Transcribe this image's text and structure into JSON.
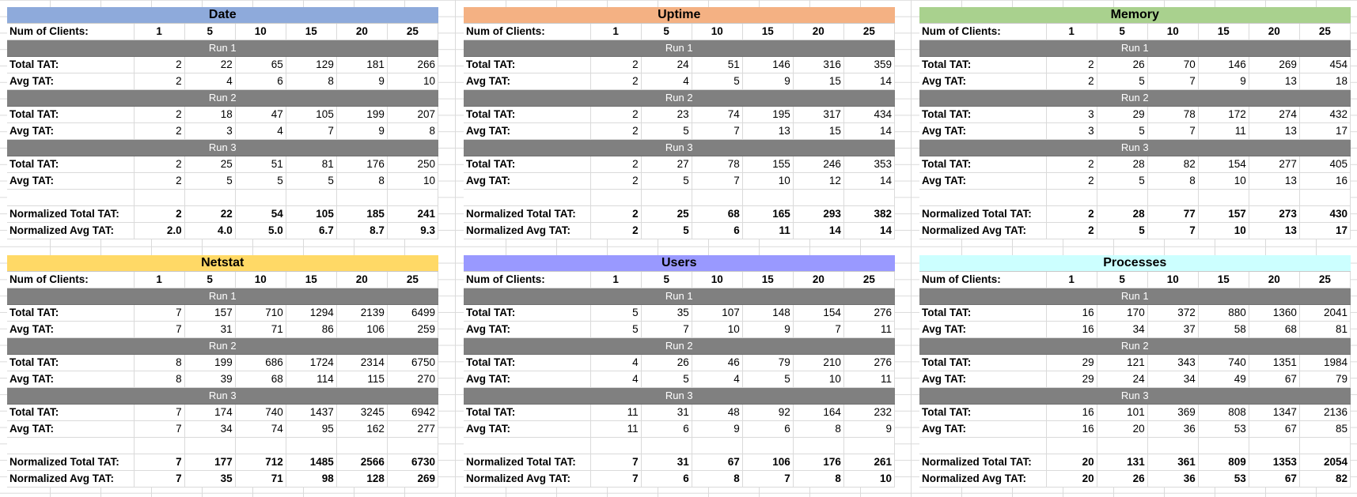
{
  "labels": {
    "num_clients": "Num of Clients:",
    "total_tat": "Total TAT:",
    "avg_tat": "Avg TAT:",
    "norm_total": "Normalized Total TAT:",
    "norm_avg": "Normalized Avg TAT:"
  },
  "clients": [
    "1",
    "5",
    "10",
    "15",
    "20",
    "25"
  ],
  "panels": [
    {
      "title": "Date",
      "color": "#8eaadb",
      "runs": [
        {
          "name": "Run 1",
          "total": [
            "2",
            "22",
            "65",
            "129",
            "181",
            "266"
          ],
          "avg": [
            "2",
            "4",
            "6",
            "8",
            "9",
            "10"
          ]
        },
        {
          "name": "Run 2",
          "total": [
            "2",
            "18",
            "47",
            "105",
            "199",
            "207"
          ],
          "avg": [
            "2",
            "3",
            "4",
            "7",
            "9",
            "8"
          ]
        },
        {
          "name": "Run 3",
          "total": [
            "2",
            "25",
            "51",
            "81",
            "176",
            "250"
          ],
          "avg": [
            "2",
            "5",
            "5",
            "5",
            "8",
            "10"
          ]
        }
      ],
      "norm_total": [
        "2",
        "22",
        "54",
        "105",
        "185",
        "241"
      ],
      "norm_avg": [
        "2.0",
        "4.0",
        "5.0",
        "6.7",
        "8.7",
        "9.3"
      ]
    },
    {
      "title": "Uptime",
      "color": "#f4b183",
      "runs": [
        {
          "name": "Run 1",
          "total": [
            "2",
            "24",
            "51",
            "146",
            "316",
            "359"
          ],
          "avg": [
            "2",
            "4",
            "5",
            "9",
            "15",
            "14"
          ]
        },
        {
          "name": "Run 2",
          "total": [
            "2",
            "23",
            "74",
            "195",
            "317",
            "434"
          ],
          "avg": [
            "2",
            "5",
            "7",
            "13",
            "15",
            "14"
          ]
        },
        {
          "name": "Run 3",
          "total": [
            "2",
            "27",
            "78",
            "155",
            "246",
            "353"
          ],
          "avg": [
            "2",
            "5",
            "7",
            "10",
            "12",
            "14"
          ]
        }
      ],
      "norm_total": [
        "2",
        "25",
        "68",
        "165",
        "293",
        "382"
      ],
      "norm_avg": [
        "2",
        "5",
        "6",
        "11",
        "14",
        "14"
      ]
    },
    {
      "title": "Memory",
      "color": "#a9d18e",
      "runs": [
        {
          "name": "Run 1",
          "total": [
            "2",
            "26",
            "70",
            "146",
            "269",
            "454"
          ],
          "avg": [
            "2",
            "5",
            "7",
            "9",
            "13",
            "18"
          ]
        },
        {
          "name": "Run 2",
          "total": [
            "3",
            "29",
            "78",
            "172",
            "274",
            "432"
          ],
          "avg": [
            "3",
            "5",
            "7",
            "11",
            "13",
            "17"
          ]
        },
        {
          "name": "Run 3",
          "total": [
            "2",
            "28",
            "82",
            "154",
            "277",
            "405"
          ],
          "avg": [
            "2",
            "5",
            "8",
            "10",
            "13",
            "16"
          ]
        }
      ],
      "norm_total": [
        "2",
        "28",
        "77",
        "157",
        "273",
        "430"
      ],
      "norm_avg": [
        "2",
        "5",
        "7",
        "10",
        "13",
        "17"
      ]
    },
    {
      "title": "Netstat",
      "color": "#ffd966",
      "runs": [
        {
          "name": "Run 1",
          "total": [
            "7",
            "157",
            "710",
            "1294",
            "2139",
            "6499"
          ],
          "avg": [
            "7",
            "31",
            "71",
            "86",
            "106",
            "259"
          ]
        },
        {
          "name": "Run 2",
          "total": [
            "8",
            "199",
            "686",
            "1724",
            "2314",
            "6750"
          ],
          "avg": [
            "8",
            "39",
            "68",
            "114",
            "115",
            "270"
          ]
        },
        {
          "name": "Run 3",
          "total": [
            "7",
            "174",
            "740",
            "1437",
            "3245",
            "6942"
          ],
          "avg": [
            "7",
            "34",
            "74",
            "95",
            "162",
            "277"
          ]
        }
      ],
      "norm_total": [
        "7",
        "177",
        "712",
        "1485",
        "2566",
        "6730"
      ],
      "norm_avg": [
        "7",
        "35",
        "71",
        "98",
        "128",
        "269"
      ]
    },
    {
      "title": "Users",
      "color": "#9999ff",
      "runs": [
        {
          "name": "Run 1",
          "total": [
            "5",
            "35",
            "107",
            "148",
            "154",
            "276"
          ],
          "avg": [
            "5",
            "7",
            "10",
            "9",
            "7",
            "11"
          ]
        },
        {
          "name": "Run 2",
          "total": [
            "4",
            "26",
            "46",
            "79",
            "210",
            "276"
          ],
          "avg": [
            "4",
            "5",
            "4",
            "5",
            "10",
            "11"
          ]
        },
        {
          "name": "Run 3",
          "total": [
            "11",
            "31",
            "48",
            "92",
            "164",
            "232"
          ],
          "avg": [
            "11",
            "6",
            "9",
            "6",
            "8",
            "9"
          ]
        }
      ],
      "norm_total": [
        "7",
        "31",
        "67",
        "106",
        "176",
        "261"
      ],
      "norm_avg": [
        "7",
        "6",
        "8",
        "7",
        "8",
        "10"
      ]
    },
    {
      "title": "Processes",
      "color": "#ccffff",
      "runs": [
        {
          "name": "Run 1",
          "total": [
            "16",
            "170",
            "372",
            "880",
            "1360",
            "2041"
          ],
          "avg": [
            "16",
            "34",
            "37",
            "58",
            "68",
            "81"
          ]
        },
        {
          "name": "Run 2",
          "total": [
            "29",
            "121",
            "343",
            "740",
            "1351",
            "1984"
          ],
          "avg": [
            "29",
            "24",
            "34",
            "49",
            "67",
            "79"
          ]
        },
        {
          "name": "Run 3",
          "total": [
            "16",
            "101",
            "369",
            "808",
            "1347",
            "2136"
          ],
          "avg": [
            "16",
            "20",
            "36",
            "53",
            "67",
            "85"
          ]
        }
      ],
      "norm_total": [
        "20",
        "131",
        "361",
        "809",
        "1353",
        "2054"
      ],
      "norm_avg": [
        "20",
        "26",
        "36",
        "53",
        "67",
        "82"
      ]
    }
  ]
}
